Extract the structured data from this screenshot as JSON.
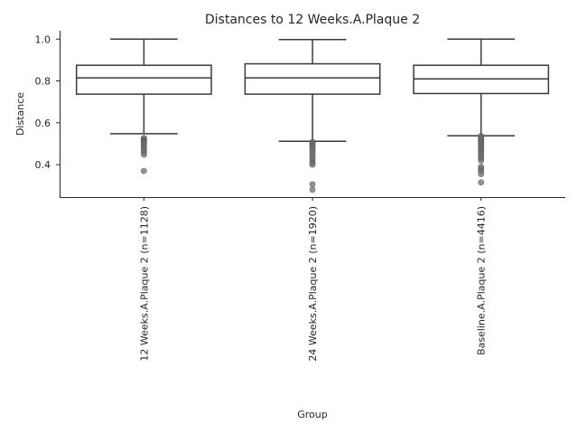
{
  "chart_data": {
    "type": "box",
    "title": "Distances to 12 Weeks.A.Plaque 2",
    "xlabel": "Group",
    "ylabel": "Distance",
    "ylim": [
      0.245,
      1.04
    ],
    "yticks": [
      "0.4",
      "0.6",
      "0.8",
      "1.0"
    ],
    "categories": [
      "12 Weeks.A.Plaque 2 (n=1128)",
      "24 Weeks.A.Plaque 2 (n=1920)",
      "Baseline.A.Plaque 2 (n=4416)"
    ],
    "boxes": [
      {
        "min": 0.548,
        "q1": 0.737,
        "median": 0.815,
        "q3": 0.875,
        "max": 1.0,
        "outliers": [
          0.527,
          0.522,
          0.516,
          0.511,
          0.505,
          0.498,
          0.49,
          0.481,
          0.47,
          0.46,
          0.448,
          0.37
        ]
      },
      {
        "min": 0.512,
        "q1": 0.737,
        "median": 0.815,
        "q3": 0.882,
        "max": 0.998,
        "outliers": [
          0.508,
          0.503,
          0.497,
          0.49,
          0.482,
          0.474,
          0.463,
          0.452,
          0.44,
          0.43,
          0.418,
          0.408,
          0.4,
          0.306,
          0.28
        ]
      },
      {
        "min": 0.538,
        "q1": 0.74,
        "median": 0.81,
        "q3": 0.875,
        "max": 1.0,
        "outliers": [
          0.537,
          0.531,
          0.525,
          0.518,
          0.511,
          0.503,
          0.495,
          0.487,
          0.478,
          0.469,
          0.46,
          0.45,
          0.44,
          0.43,
          0.42,
          0.39,
          0.38,
          0.37,
          0.355,
          0.315
        ]
      }
    ],
    "grid": false,
    "legend": "none"
  }
}
